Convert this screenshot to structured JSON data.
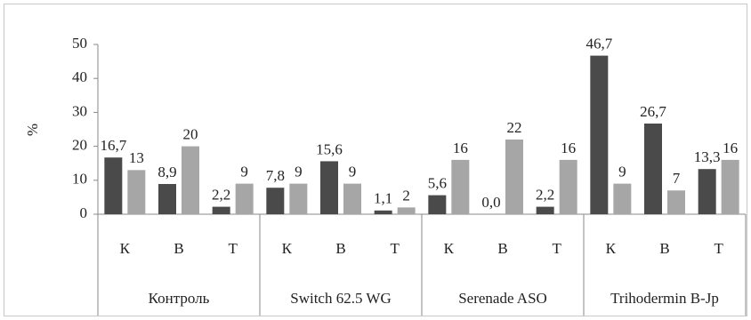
{
  "chart_data": {
    "type": "bar",
    "y_label": "%",
    "groups": [
      "Контроль",
      "Switch 62.5 WG",
      "Serenade ASO",
      "Trihodermin B-Jp"
    ],
    "categories": [
      "К",
      "В",
      "Т",
      "К",
      "В",
      "Т",
      "К",
      "В",
      "Т",
      "К",
      "В",
      "Т"
    ],
    "series": [
      {
        "color": "#4a4a4a",
        "values": [
          16.7,
          8.9,
          2.2,
          7.8,
          15.6,
          1.1,
          5.6,
          0.0,
          2.2,
          46.7,
          26.7,
          13.3
        ],
        "value_labels": [
          "16,7",
          "8,9",
          "2,2",
          "7,8",
          "15,6",
          "1,1",
          "5,6",
          "0,0",
          "2,2",
          "46,7",
          "26,7",
          "13,3"
        ]
      },
      {
        "color": "#a6a6a6",
        "values": [
          13,
          20,
          9,
          9,
          9,
          2,
          16,
          22,
          16,
          9,
          7,
          16
        ]
      }
    ],
    "ylim": [
      0,
      50
    ],
    "yticks": [
      0,
      10,
      20,
      30,
      40,
      50
    ],
    "grid": false
  }
}
